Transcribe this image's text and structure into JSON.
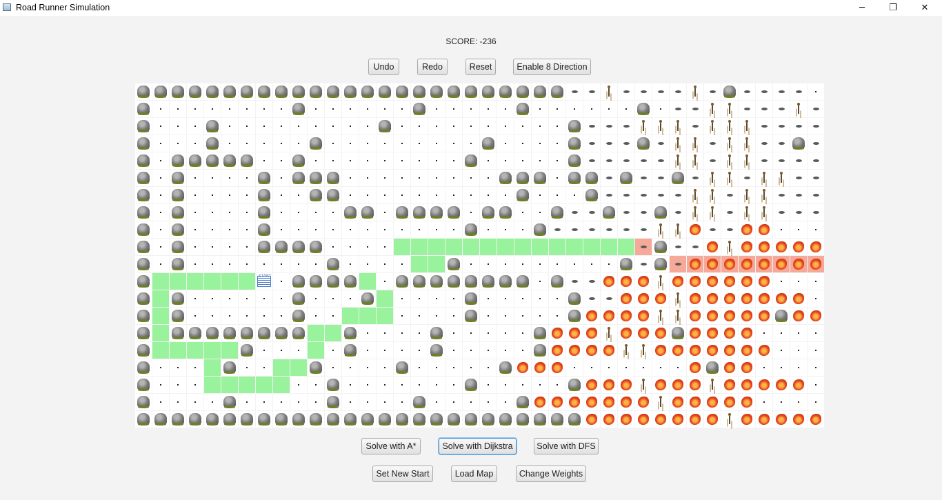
{
  "window": {
    "title": "Road Runner Simulation",
    "controls": {
      "minimize": "─",
      "maximize": "❐",
      "close": "✕"
    }
  },
  "score_text": "SCORE: -236",
  "top_buttons": {
    "undo": "Undo",
    "redo": "Redo",
    "reset": "Reset",
    "enable8": "Enable 8 Direction"
  },
  "solve_buttons": {
    "astar": "Solve with A*",
    "dijkstra": "Solve with Dijkstra",
    "dfs": "Solve with DFS"
  },
  "bottom_buttons": {
    "set_start": "Set New Start",
    "load_map": "Load Map",
    "change_weights": "Change Weights"
  },
  "start_label": "START",
  "colors": {
    "path_green": "#99f29c",
    "path_salmon": "#f6a899",
    "focus_blue": "#3c8ad6"
  },
  "legend": {
    "R": "rock-icon",
    ".": "empty-road",
    "G": "path-cell",
    "S": "start-marker-icon",
    "M": "mud-icon",
    "P": "runner-icon",
    "m": "path-mud",
    "F": "fire-icon",
    "f": "path-fire",
    "E": "goal-runner-icon"
  },
  "grid": [
    "RRRRRRRRRRRRRRRRRRRRRRRRRMMPMMMMPMRMMMM",
    "R........R......R.....R......R.MMPPMMMPMMRMM",
    "R...R.........R..........RMMMPPPMPPPMMMM",
    "R...R.....R.........R....RMMMRMPPMPPMMRM",
    "R.RRRRR..R.........R.....RMMMMMPPMPPMMMM",
    "R.R....R.RRR.........RRR.RRMRMMRMPPMPPMMMM",
    "R.R....R..RR..........R...RMMMMMPPMPPMMMM",
    "R.R....R....RR.RRRR.RR..RMMRMMRMPPMPPMMMM",
    "R.R....R...........R...RMMMMMMPPFMMFF",
    "R.R....RRRR....GGGGGGGGGGGGGGmRMMFPFFFFF",
    "R.R........R....GGR.........RMRmfffffffffEF",
    "RGGGGGGS.RRRRG.RRRRRRRR.RMMFFFPFFFFFF",
    "RGR......R...RG....R.....RMMFFFPFFFFFFF",
    "RGR......R..GGG....R.....RFFFFPPFFFFFRFF",
    "RGRRRRRRRRGGR....R.....RFFFPFFFRFFFF",
    "RGGGGGR...G.R....R.....RFFFFPPFFFFFFF",
    "R...GR..GGR....R.....RFFF.......FRFF...",
    "R...GGGGG..R.......R.....RFFFPFFFPFFFFF",
    "R....R.....R....R.....RFFFFFFFPFFFFF",
    "RRRRRRRRRRRRRRRRRRRRRRRRRRFFFFFFFFPFFFFFF"
  ]
}
